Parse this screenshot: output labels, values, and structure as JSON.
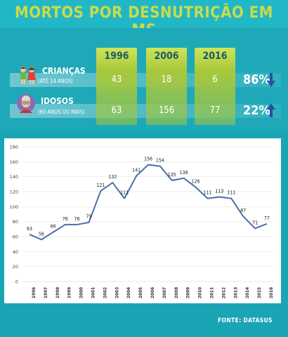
{
  "title": "MORTOS POR DESNUTRIÇÃO EM MS",
  "table": {
    "years": [
      "1996",
      "2006",
      "2016"
    ],
    "rows": [
      {
        "label": "CRIANÇAS",
        "sublabel": "(ATÉ 14 ANOS)",
        "values": [
          "43",
          "18",
          "6"
        ],
        "change": "86%",
        "direction": "down",
        "icon": "children-icon"
      },
      {
        "label": "IDOSOS",
        "sublabel": "(60 ANOS OU MAIS)",
        "values": [
          "63",
          "156",
          "77"
        ],
        "change": "22%",
        "direction": "up",
        "icon": "elderly-woman-icon"
      }
    ]
  },
  "chart_data": {
    "type": "line",
    "x": [
      "1996",
      "1997",
      "1998",
      "1999",
      "2000",
      "2001",
      "2002",
      "2003",
      "2004",
      "2005",
      "2006",
      "2007",
      "2008",
      "2009",
      "2010",
      "2011",
      "2012",
      "2013",
      "2014",
      "2015",
      "2016"
    ],
    "series": [
      {
        "values": [
          63,
          56,
          66,
          76,
          76,
          79,
          121,
          132,
          111,
          141,
          156,
          154,
          135,
          138,
          126,
          111,
          113,
          111,
          87,
          71,
          77
        ]
      }
    ],
    "ylim": [
      0,
      180
    ],
    "yticks": [
      "0",
      "20",
      "40",
      "60",
      "80",
      "100",
      "120",
      "140",
      "160",
      "180"
    ],
    "grid": true,
    "line_color": "#4a6fa5"
  },
  "source": "FONTE: DATASUS",
  "colors": {
    "accent": "#c8dc4a",
    "background": "#1aa5b4",
    "arrow": "#2a4fa8"
  }
}
